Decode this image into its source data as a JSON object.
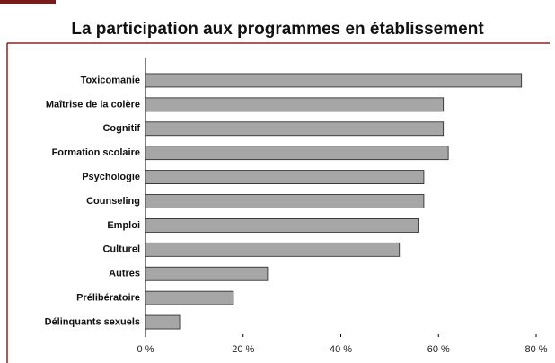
{
  "chart_data": {
    "type": "bar",
    "orientation": "horizontal",
    "title": "La participation aux programmes en établissement",
    "categories": [
      "Toxicomanie",
      "Maîtrise de la colère",
      "Cognitif",
      "Formation scolaire",
      "Psychologie",
      "Counseling",
      "Emploi",
      "Culturel",
      "Autres",
      "Prélibératoire",
      "Délinquants sexuels"
    ],
    "values": [
      77,
      61,
      61,
      62,
      57,
      57,
      56,
      52,
      25,
      18,
      7
    ],
    "color": "#a6a6a6",
    "xlim": [
      0,
      80
    ],
    "xticks": [
      {
        "value": 0,
        "label": "0 %"
      },
      {
        "value": 20,
        "label": "20 %"
      },
      {
        "value": 40,
        "label": "40 %"
      },
      {
        "value": 60,
        "label": "60 %"
      },
      {
        "value": 80,
        "label": "80 %"
      }
    ],
    "grid": false
  }
}
